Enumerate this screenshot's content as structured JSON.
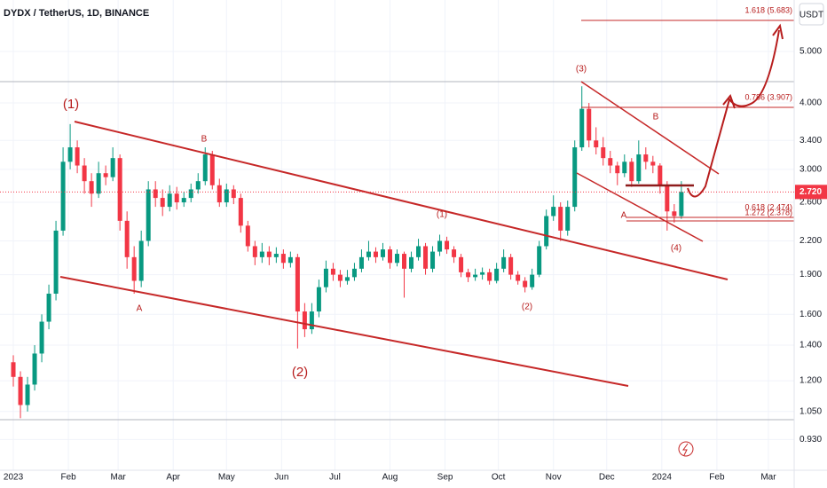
{
  "chart_data": {
    "type": "candlestick",
    "title": "DYDX / TetherUS, 1D, BINANCE",
    "currency": "USDT",
    "log_scale": true,
    "grid": true,
    "up_color": "#089981",
    "down_color": "#f23645",
    "last_price": {
      "value": 2.72,
      "label": "2.720"
    },
    "xlim": [
      -7.5,
      439.5
    ],
    "xticks": [
      {
        "value": 0,
        "label": "2023"
      },
      {
        "value": 31,
        "label": "Feb"
      },
      {
        "value": 59,
        "label": "Mar"
      },
      {
        "value": 90,
        "label": "Apr"
      },
      {
        "value": 120,
        "label": "May"
      },
      {
        "value": 151,
        "label": "Jun"
      },
      {
        "value": 181,
        "label": "Jul"
      },
      {
        "value": 212,
        "label": "Aug"
      },
      {
        "value": 243,
        "label": "Sep"
      },
      {
        "value": 273,
        "label": "Oct"
      },
      {
        "value": 304,
        "label": "Nov"
      },
      {
        "value": 334,
        "label": "Dec"
      },
      {
        "value": 365,
        "label": "2024"
      },
      {
        "value": 396,
        "label": "Feb"
      },
      {
        "value": 425,
        "label": "Mar"
      }
    ],
    "ylim": [
      0.814,
      6.25
    ],
    "yticks": [
      {
        "value": 5,
        "label": "5.000"
      },
      {
        "value": 4,
        "label": "4.000"
      },
      {
        "value": 3.4,
        "label": "3.400"
      },
      {
        "value": 3,
        "label": "3.000"
      },
      {
        "value": 2.6,
        "label": "2.600"
      },
      {
        "value": 2.2,
        "label": "2.200"
      },
      {
        "value": 1.9,
        "label": "1.900"
      },
      {
        "value": 1.6,
        "label": "1.600"
      },
      {
        "value": 1.4,
        "label": "1.400"
      },
      {
        "value": 1.2,
        "label": "1.200"
      },
      {
        "value": 1.05,
        "label": "1.050"
      },
      {
        "value": 0.93,
        "label": "0.930"
      }
    ],
    "annotations": [
      "(1)",
      "B",
      "A",
      "(2)",
      "(1)",
      "(2)",
      "(3)",
      "B",
      "A",
      "(4)",
      "1.618 (5.683)",
      "0.786 (3.907)",
      "0.618 (2.474)",
      "1.272 (2.378)"
    ],
    "x": [
      0,
      4,
      8,
      12,
      16,
      20,
      24,
      28,
      32,
      36,
      40,
      44,
      48,
      52,
      56,
      60,
      64,
      68,
      72,
      76,
      80,
      84,
      88,
      92,
      96,
      100,
      104,
      108,
      112,
      116,
      120,
      124,
      128,
      132,
      136,
      140,
      144,
      148,
      152,
      156,
      160,
      164,
      168,
      172,
      176,
      180,
      184,
      188,
      192,
      196,
      200,
      204,
      208,
      212,
      216,
      220,
      224,
      228,
      232,
      236,
      240,
      244,
      248,
      252,
      256,
      260,
      264,
      268,
      272,
      276,
      280,
      284,
      288,
      292,
      296,
      300,
      304,
      308,
      312,
      316,
      320,
      324,
      328,
      332,
      336,
      340,
      344,
      348,
      352,
      356,
      360,
      364,
      368,
      372,
      376
    ],
    "ohlc": [
      [
        1.3,
        1.34,
        1.17,
        1.22
      ],
      [
        1.22,
        1.25,
        1.02,
        1.08
      ],
      [
        1.08,
        1.22,
        1.05,
        1.18
      ],
      [
        1.18,
        1.4,
        1.15,
        1.35
      ],
      [
        1.35,
        1.6,
        1.3,
        1.55
      ],
      [
        1.55,
        1.82,
        1.5,
        1.75
      ],
      [
        1.75,
        2.4,
        1.7,
        2.3
      ],
      [
        2.3,
        3.3,
        2.25,
        3.1
      ],
      [
        3.1,
        3.65,
        3.0,
        3.3
      ],
      [
        3.3,
        3.4,
        2.95,
        3.05
      ],
      [
        3.05,
        3.15,
        2.7,
        2.85
      ],
      [
        2.85,
        2.95,
        2.55,
        2.7
      ],
      [
        2.7,
        3.1,
        2.65,
        2.95
      ],
      [
        2.95,
        3.05,
        2.8,
        2.9
      ],
      [
        2.9,
        3.3,
        2.85,
        3.15
      ],
      [
        3.15,
        3.2,
        2.3,
        2.4
      ],
      [
        2.4,
        2.5,
        1.95,
        2.05
      ],
      [
        2.05,
        2.15,
        1.75,
        1.85
      ],
      [
        1.85,
        2.3,
        1.8,
        2.2
      ],
      [
        2.2,
        2.85,
        2.15,
        2.75
      ],
      [
        2.75,
        2.85,
        2.55,
        2.65
      ],
      [
        2.65,
        2.75,
        2.45,
        2.55
      ],
      [
        2.55,
        2.8,
        2.5,
        2.7
      ],
      [
        2.7,
        2.78,
        2.52,
        2.6
      ],
      [
        2.6,
        2.72,
        2.55,
        2.65
      ],
      [
        2.65,
        2.82,
        2.6,
        2.75
      ],
      [
        2.75,
        2.95,
        2.7,
        2.85
      ],
      [
        2.85,
        3.3,
        2.8,
        3.2
      ],
      [
        3.2,
        3.25,
        2.75,
        2.8
      ],
      [
        2.8,
        2.88,
        2.55,
        2.6
      ],
      [
        2.6,
        2.82,
        2.55,
        2.75
      ],
      [
        2.75,
        2.8,
        2.58,
        2.65
      ],
      [
        2.65,
        2.7,
        2.28,
        2.35
      ],
      [
        2.35,
        2.4,
        2.1,
        2.15
      ],
      [
        2.15,
        2.2,
        1.98,
        2.05
      ],
      [
        2.05,
        2.18,
        2.0,
        2.1
      ],
      [
        2.1,
        2.15,
        1.98,
        2.05
      ],
      [
        2.05,
        2.14,
        2.0,
        2.08
      ],
      [
        2.08,
        2.12,
        1.95,
        2.0
      ],
      [
        2.0,
        2.1,
        1.96,
        2.05
      ],
      [
        2.05,
        2.08,
        1.38,
        1.62
      ],
      [
        1.62,
        1.68,
        1.45,
        1.5
      ],
      [
        1.5,
        1.68,
        1.47,
        1.62
      ],
      [
        1.62,
        1.86,
        1.58,
        1.8
      ],
      [
        1.8,
        2.02,
        1.76,
        1.95
      ],
      [
        1.95,
        2.0,
        1.85,
        1.9
      ],
      [
        1.9,
        1.94,
        1.8,
        1.85
      ],
      [
        1.85,
        1.94,
        1.82,
        1.88
      ],
      [
        1.88,
        2.0,
        1.85,
        1.95
      ],
      [
        1.95,
        2.12,
        1.92,
        2.05
      ],
      [
        2.05,
        2.2,
        2.02,
        2.1
      ],
      [
        2.1,
        2.14,
        2.0,
        2.05
      ],
      [
        2.05,
        2.18,
        2.02,
        2.12
      ],
      [
        2.12,
        2.15,
        1.95,
        2.0
      ],
      [
        2.0,
        2.12,
        1.97,
        2.08
      ],
      [
        2.08,
        2.1,
        1.72,
        1.95
      ],
      [
        1.95,
        2.1,
        1.92,
        2.05
      ],
      [
        2.05,
        2.22,
        2.02,
        2.15
      ],
      [
        2.15,
        2.18,
        1.9,
        1.95
      ],
      [
        1.95,
        2.15,
        1.92,
        2.1
      ],
      [
        2.1,
        2.26,
        2.06,
        2.2
      ],
      [
        2.2,
        2.24,
        2.08,
        2.12
      ],
      [
        2.12,
        2.15,
        2.0,
        2.05
      ],
      [
        2.05,
        2.08,
        1.88,
        1.92
      ],
      [
        1.92,
        1.95,
        1.84,
        1.88
      ],
      [
        1.88,
        1.95,
        1.85,
        1.9
      ],
      [
        1.9,
        1.96,
        1.86,
        1.92
      ],
      [
        1.92,
        1.95,
        1.82,
        1.85
      ],
      [
        1.85,
        2.0,
        1.83,
        1.95
      ],
      [
        1.95,
        2.12,
        1.92,
        2.05
      ],
      [
        2.05,
        2.08,
        1.86,
        1.9
      ],
      [
        1.9,
        1.93,
        1.82,
        1.85
      ],
      [
        1.85,
        1.88,
        1.76,
        1.8
      ],
      [
        1.8,
        1.95,
        1.78,
        1.9
      ],
      [
        1.9,
        2.2,
        1.88,
        2.15
      ],
      [
        2.15,
        2.52,
        2.12,
        2.45
      ],
      [
        2.45,
        2.68,
        2.4,
        2.55
      ],
      [
        2.55,
        2.6,
        2.2,
        2.3
      ],
      [
        2.3,
        2.62,
        2.25,
        2.55
      ],
      [
        2.55,
        3.4,
        2.5,
        3.3
      ],
      [
        3.3,
        4.3,
        3.25,
        3.9
      ],
      [
        3.9,
        4.0,
        3.3,
        3.4
      ],
      [
        3.4,
        3.6,
        3.2,
        3.3
      ],
      [
        3.3,
        3.45,
        3.05,
        3.15
      ],
      [
        3.15,
        3.25,
        2.95,
        3.05
      ],
      [
        3.05,
        3.1,
        2.8,
        2.95
      ],
      [
        2.95,
        3.2,
        2.9,
        3.1
      ],
      [
        3.1,
        3.15,
        2.78,
        2.85
      ],
      [
        2.85,
        3.4,
        2.82,
        3.2
      ],
      [
        3.2,
        3.3,
        3.0,
        3.1
      ],
      [
        3.1,
        3.18,
        2.95,
        3.05
      ],
      [
        3.05,
        3.08,
        2.7,
        2.8
      ],
      [
        2.8,
        2.85,
        2.3,
        2.5
      ],
      [
        2.5,
        2.58,
        2.38,
        2.45
      ],
      [
        2.45,
        2.85,
        2.42,
        2.72
      ]
    ]
  }
}
